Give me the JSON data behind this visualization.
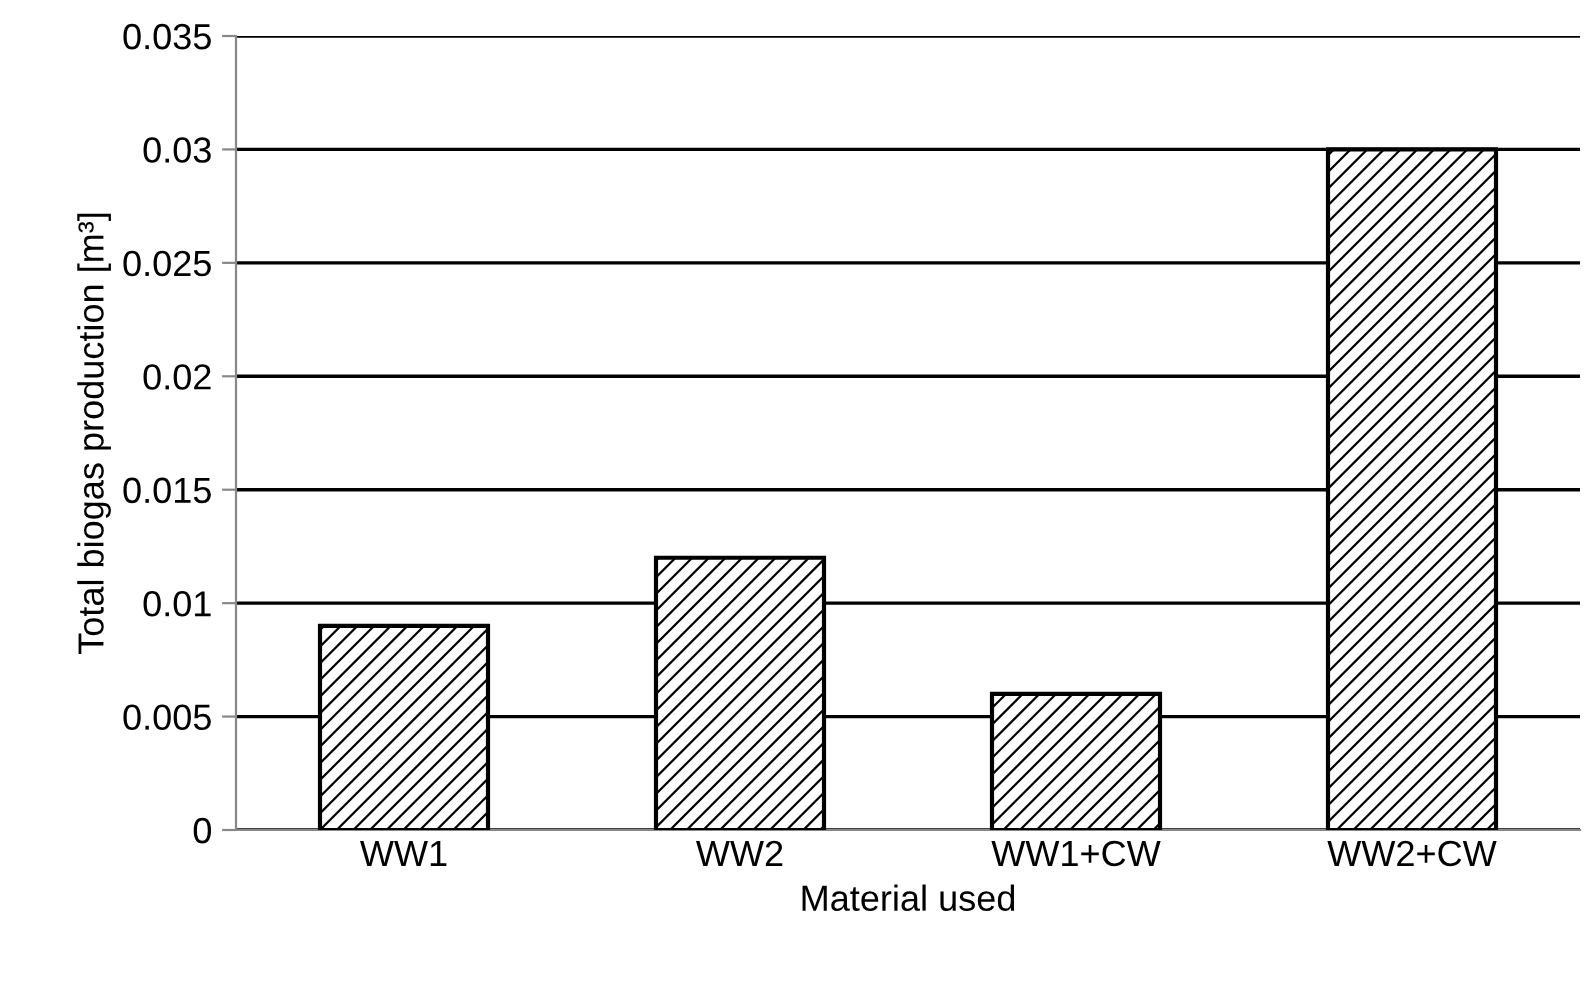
{
  "chart_data": {
    "type": "bar",
    "xlabel": "Material used",
    "ylabel": "Total biogas production [m³]",
    "categories": [
      "WW1",
      "WW2",
      "WW1+CW",
      "WW2+CW"
    ],
    "values": [
      0.009,
      0.012,
      0.006,
      0.03
    ],
    "color": "#000000",
    "ylim": [
      0,
      0.035
    ],
    "yticks": [
      0,
      0.005,
      0.01,
      0.015,
      0.02,
      0.025,
      0.03,
      0.035
    ],
    "grid": "y"
  }
}
